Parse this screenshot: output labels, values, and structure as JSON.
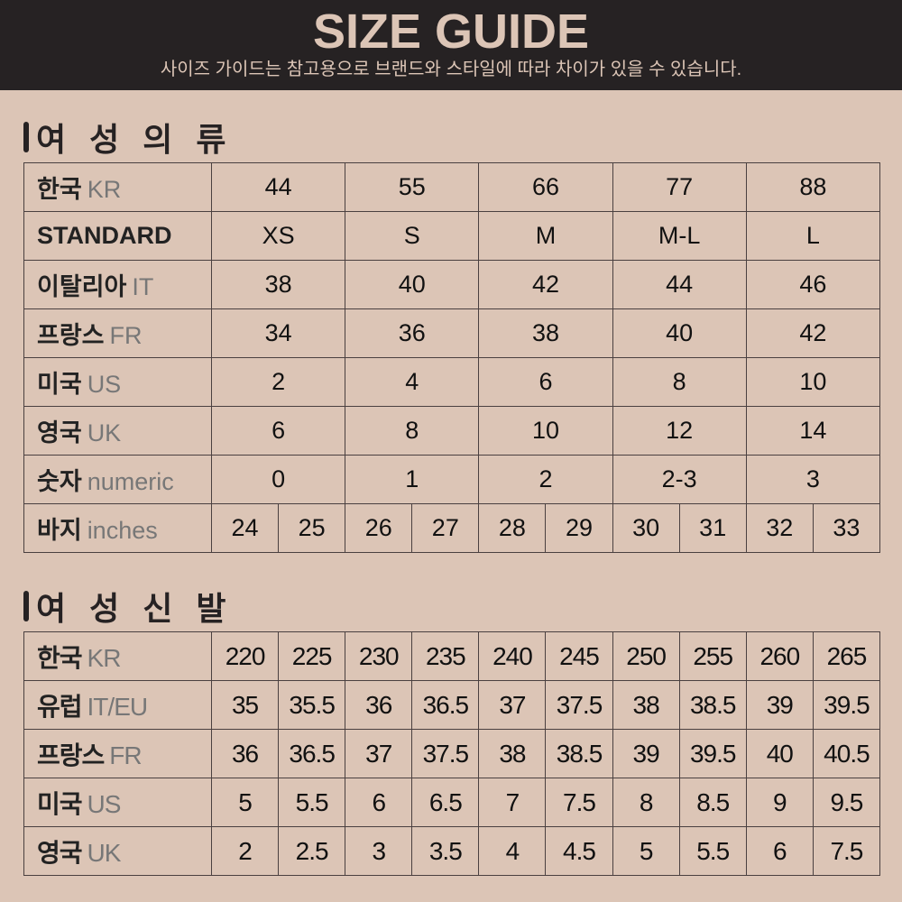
{
  "header": {
    "title": "SIZE GUIDE",
    "subtitle": "사이즈 가이드는 참고용으로 브랜드와 스타일에 따라 차이가 있을 수 있습니다."
  },
  "clothing": {
    "title": "여 성 의 류",
    "rows": [
      {
        "ko": "한국",
        "en": "KR",
        "values": [
          "44",
          "55",
          "66",
          "77",
          "88"
        ]
      },
      {
        "ko": "STANDARD",
        "en": "",
        "values": [
          "XS",
          "S",
          "M",
          "M-L",
          "L"
        ]
      },
      {
        "ko": "이탈리아",
        "en": "IT",
        "values": [
          "38",
          "40",
          "42",
          "44",
          "46"
        ]
      },
      {
        "ko": "프랑스",
        "en": "FR",
        "values": [
          "34",
          "36",
          "38",
          "40",
          "42"
        ]
      },
      {
        "ko": "미국",
        "en": "US",
        "values": [
          "2",
          "4",
          "6",
          "8",
          "10"
        ]
      },
      {
        "ko": "영국",
        "en": "UK",
        "values": [
          "6",
          "8",
          "10",
          "12",
          "14"
        ]
      },
      {
        "ko": "숫자",
        "en": "numeric",
        "values": [
          "0",
          "1",
          "2",
          "2-3",
          "3"
        ]
      },
      {
        "ko": "바지",
        "en": "inches",
        "values": [
          "24",
          "25",
          "26",
          "27",
          "28",
          "29",
          "30",
          "31",
          "32",
          "33"
        ]
      }
    ]
  },
  "shoes": {
    "title": "여 성 신 발",
    "rows": [
      {
        "ko": "한국",
        "en": "KR",
        "values": [
          "220",
          "225",
          "230",
          "235",
          "240",
          "245",
          "250",
          "255",
          "260",
          "265"
        ]
      },
      {
        "ko": "유럽",
        "en": "IT/EU",
        "values": [
          "35",
          "35.5",
          "36",
          "36.5",
          "37",
          "37.5",
          "38",
          "38.5",
          "39",
          "39.5"
        ]
      },
      {
        "ko": "프랑스",
        "en": "FR",
        "values": [
          "36",
          "36.5",
          "37",
          "37.5",
          "38",
          "38.5",
          "39",
          "39.5",
          "40",
          "40.5"
        ]
      },
      {
        "ko": "미국",
        "en": "US",
        "values": [
          "5",
          "5.5",
          "6",
          "6.5",
          "7",
          "7.5",
          "8",
          "8.5",
          "9",
          "9.5"
        ]
      },
      {
        "ko": "영국",
        "en": "UK",
        "values": [
          "2",
          "2.5",
          "3",
          "3.5",
          "4",
          "4.5",
          "5",
          "5.5",
          "6",
          "7.5"
        ]
      }
    ]
  }
}
